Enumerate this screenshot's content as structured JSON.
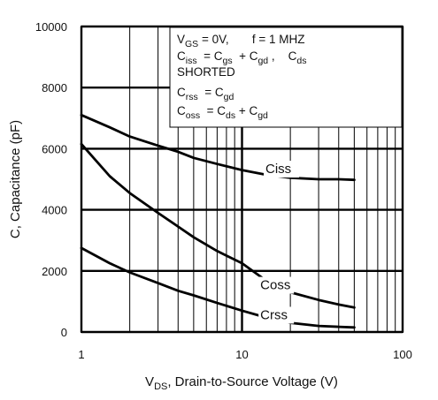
{
  "chart_data": {
    "type": "line",
    "xlabel_main": "V",
    "xlabel_sub": "DS",
    "xlabel_rest": ", Drain-to-Source Voltage (V)",
    "ylabel": "C, Capacitance (pF)",
    "xscale": "log",
    "xlim": [
      1,
      100
    ],
    "ylim": [
      0,
      10000
    ],
    "grid": true,
    "x_ticks": [
      {
        "v": 1,
        "label": "1"
      },
      {
        "v": 10,
        "label": "10"
      },
      {
        "v": 100,
        "label": "100"
      }
    ],
    "y_ticks": [
      {
        "v": 0,
        "label": "0"
      },
      {
        "v": 2000,
        "label": "2000"
      },
      {
        "v": 4000,
        "label": "4000"
      },
      {
        "v": 6000,
        "label": "6000"
      },
      {
        "v": 8000,
        "label": "8000"
      },
      {
        "v": 10000,
        "label": "10000"
      }
    ],
    "series": [
      {
        "name": "Ciss",
        "x": [
          1,
          1.5,
          2,
          3,
          4,
          5,
          7,
          10,
          14,
          20,
          30,
          40,
          50
        ],
        "y": [
          7100,
          6700,
          6400,
          6100,
          5900,
          5700,
          5500,
          5300,
          5150,
          5050,
          5000,
          5000,
          4980
        ]
      },
      {
        "name": "Coss",
        "x": [
          1,
          1.5,
          2,
          3,
          4,
          5,
          7,
          10,
          14,
          20,
          30,
          40,
          50
        ],
        "y": [
          6150,
          5100,
          4550,
          3900,
          3450,
          3100,
          2650,
          2250,
          1700,
          1300,
          1050,
          900,
          800
        ]
      },
      {
        "name": "Crss",
        "x": [
          1,
          1.5,
          2,
          3,
          4,
          5,
          7,
          10,
          14,
          20,
          30,
          40,
          50
        ],
        "y": [
          2750,
          2250,
          1950,
          1600,
          1350,
          1200,
          950,
          700,
          480,
          300,
          200,
          170,
          150
        ]
      }
    ],
    "curve_labels": [
      {
        "text": "Ciss",
        "x": 14,
        "y": 5200
      },
      {
        "text": "Coss",
        "x": 13,
        "y": 1400
      },
      {
        "text": "Crss",
        "x": 13,
        "y": 420
      }
    ],
    "legend": {
      "line1": {
        "a": "V",
        "a_sub": "GS",
        "b": " = 0V,       f = 1 MHZ"
      },
      "line2": {
        "a": "C",
        "a_sub": "iss",
        "b": "  = C",
        "b_sub": "gs",
        "c": "  + C",
        "c_sub": "gd",
        "d": " ,    C",
        "d_sub": "ds"
      },
      "line3": "SHORTED",
      "line4": {
        "a": "C",
        "a_sub": "rss",
        "b": "  = C",
        "b_sub": "gd"
      },
      "line5": {
        "a": "C",
        "a_sub": "oss",
        "b": "  = C",
        "b_sub": "ds",
        "c": " + C",
        "c_sub": "gd"
      }
    }
  }
}
